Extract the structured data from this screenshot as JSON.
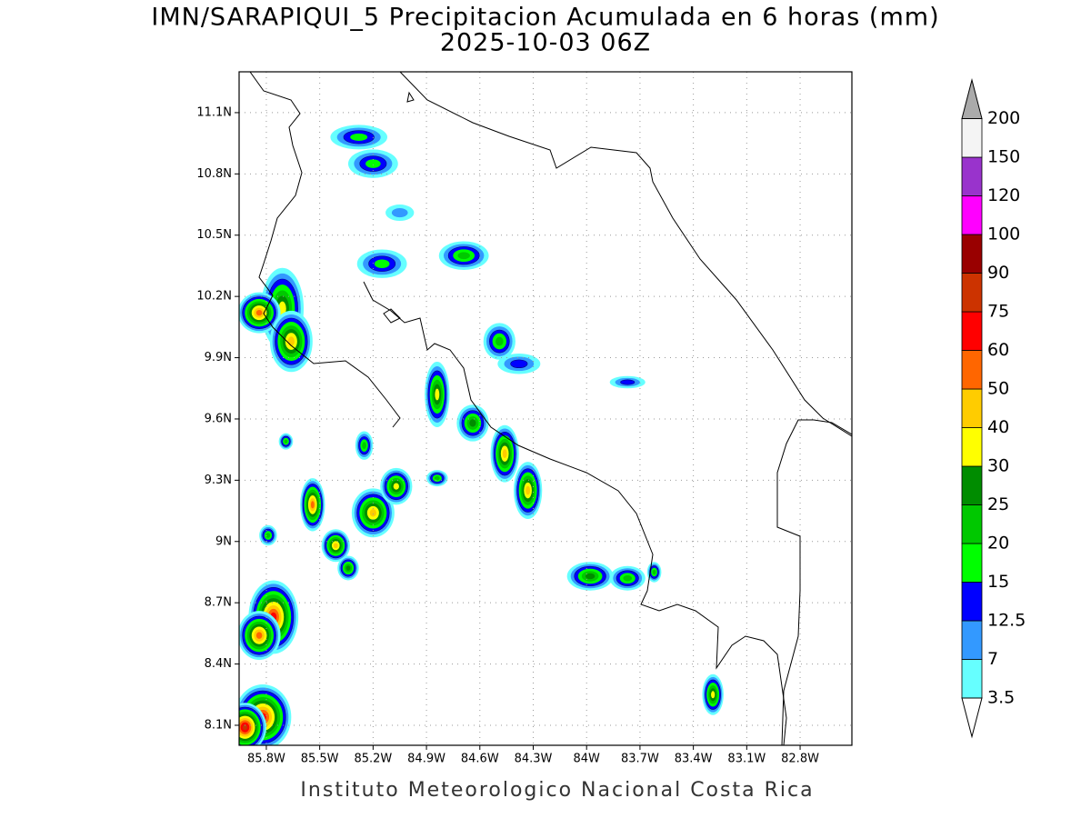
{
  "chart_data": {
    "type": "map",
    "title": "IMN/SARAPIQUI_5 Precipitacion Acumulada en 6 horas (mm)",
    "subtitle": "2025-10-03 06Z",
    "credit": "Instituto Meteorologico Nacional Costa Rica",
    "xlim": [
      -85.953,
      -82.509
    ],
    "ylim": [
      8.002,
      11.3
    ],
    "grid": true,
    "xticks": [
      {
        "value": -85.8,
        "label": "85.8W"
      },
      {
        "value": -85.5,
        "label": "85.5W"
      },
      {
        "value": -85.2,
        "label": "85.2W"
      },
      {
        "value": -84.9,
        "label": "84.9W"
      },
      {
        "value": -84.6,
        "label": "84.6W"
      },
      {
        "value": -84.3,
        "label": "84.3W"
      },
      {
        "value": -84.0,
        "label": "84W"
      },
      {
        "value": -83.7,
        "label": "83.7W"
      },
      {
        "value": -83.4,
        "label": "83.4W"
      },
      {
        "value": -83.1,
        "label": "83.1W"
      },
      {
        "value": -82.8,
        "label": "82.8W"
      }
    ],
    "yticks": [
      {
        "value": 11.1,
        "label": "11.1N"
      },
      {
        "value": 10.8,
        "label": "10.8N"
      },
      {
        "value": 10.5,
        "label": "10.5N"
      },
      {
        "value": 10.2,
        "label": "10.2N"
      },
      {
        "value": 9.9,
        "label": "9.9N"
      },
      {
        "value": 9.6,
        "label": "9.6N"
      },
      {
        "value": 9.3,
        "label": "9.3N"
      },
      {
        "value": 9.0,
        "label": "9N"
      },
      {
        "value": 8.7,
        "label": "8.7N"
      },
      {
        "value": 8.4,
        "label": "8.4N"
      },
      {
        "value": 8.1,
        "label": "8.1N"
      }
    ],
    "colorbar": {
      "levels": [
        3.5,
        7,
        12.5,
        15,
        20,
        25,
        30,
        40,
        50,
        60,
        75,
        90,
        100,
        120,
        150,
        200
      ],
      "colors": [
        "#66ffff",
        "#3399ff",
        "#0000ff",
        "#00ff00",
        "#00c800",
        "#008c00",
        "#ffff00",
        "#ffcc00",
        "#ff6600",
        "#ff0000",
        "#cc3300",
        "#990000",
        "#ff00ff",
        "#9933cc",
        "#f4f4f4"
      ],
      "over_color": "#aaaaaa",
      "under_color": "#ffffff"
    },
    "cells": [
      {
        "lon": -85.28,
        "lat": 10.98,
        "rx": 0.16,
        "ry": 0.06,
        "peak": 15
      },
      {
        "lon": -85.2,
        "lat": 10.85,
        "rx": 0.14,
        "ry": 0.07,
        "peak": 15
      },
      {
        "lon": -85.71,
        "lat": 10.14,
        "rx": 0.12,
        "ry": 0.2,
        "peak": 30
      },
      {
        "lon": -85.84,
        "lat": 10.12,
        "rx": 0.12,
        "ry": 0.1,
        "peak": 50
      },
      {
        "lon": -85.66,
        "lat": 9.98,
        "rx": 0.12,
        "ry": 0.15,
        "peak": 40
      },
      {
        "lon": -85.15,
        "lat": 10.36,
        "rx": 0.14,
        "ry": 0.07,
        "peak": 15
      },
      {
        "lon": -84.69,
        "lat": 10.4,
        "rx": 0.14,
        "ry": 0.07,
        "peak": 20
      },
      {
        "lon": -84.49,
        "lat": 9.98,
        "rx": 0.09,
        "ry": 0.09,
        "peak": 20
      },
      {
        "lon": -84.38,
        "lat": 9.87,
        "rx": 0.12,
        "ry": 0.05,
        "peak": 12.5
      },
      {
        "lon": -84.84,
        "lat": 9.72,
        "rx": 0.07,
        "ry": 0.16,
        "peak": 30
      },
      {
        "lon": -84.64,
        "lat": 9.58,
        "rx": 0.09,
        "ry": 0.09,
        "peak": 25
      },
      {
        "lon": -84.46,
        "lat": 9.43,
        "rx": 0.08,
        "ry": 0.14,
        "peak": 40
      },
      {
        "lon": -84.33,
        "lat": 9.25,
        "rx": 0.08,
        "ry": 0.14,
        "peak": 40
      },
      {
        "lon": -85.54,
        "lat": 9.18,
        "rx": 0.07,
        "ry": 0.13,
        "peak": 50
      },
      {
        "lon": -85.2,
        "lat": 9.14,
        "rx": 0.12,
        "ry": 0.12,
        "peak": 40
      },
      {
        "lon": -85.07,
        "lat": 9.27,
        "rx": 0.09,
        "ry": 0.09,
        "peak": 30
      },
      {
        "lon": -85.41,
        "lat": 8.98,
        "rx": 0.08,
        "ry": 0.08,
        "peak": 40
      },
      {
        "lon": -85.34,
        "lat": 8.87,
        "rx": 0.06,
        "ry": 0.06,
        "peak": 25
      },
      {
        "lon": -85.76,
        "lat": 8.63,
        "rx": 0.14,
        "ry": 0.18,
        "peak": 60
      },
      {
        "lon": -85.84,
        "lat": 8.54,
        "rx": 0.12,
        "ry": 0.12,
        "peak": 50
      },
      {
        "lon": -85.82,
        "lat": 8.14,
        "rx": 0.16,
        "ry": 0.16,
        "peak": 60
      },
      {
        "lon": -85.92,
        "lat": 8.09,
        "rx": 0.12,
        "ry": 0.12,
        "peak": 75
      },
      {
        "lon": -83.98,
        "lat": 8.83,
        "rx": 0.13,
        "ry": 0.07,
        "peak": 25
      },
      {
        "lon": -83.77,
        "lat": 8.82,
        "rx": 0.1,
        "ry": 0.06,
        "peak": 20
      },
      {
        "lon": -83.29,
        "lat": 8.25,
        "rx": 0.06,
        "ry": 0.1,
        "peak": 30
      },
      {
        "lon": -83.77,
        "lat": 9.78,
        "rx": 0.1,
        "ry": 0.03,
        "peak": 12.5
      },
      {
        "lon": -85.25,
        "lat": 9.47,
        "rx": 0.05,
        "ry": 0.07,
        "peak": 20
      },
      {
        "lon": -85.69,
        "lat": 9.49,
        "rx": 0.04,
        "ry": 0.04,
        "peak": 20
      },
      {
        "lon": -84.84,
        "lat": 9.31,
        "rx": 0.06,
        "ry": 0.04,
        "peak": 20
      },
      {
        "lon": -85.79,
        "lat": 9.03,
        "rx": 0.05,
        "ry": 0.05,
        "peak": 20
      },
      {
        "lon": -83.62,
        "lat": 8.85,
        "rx": 0.04,
        "ry": 0.05,
        "peak": 20
      },
      {
        "lon": -85.05,
        "lat": 10.61,
        "rx": 0.08,
        "ry": 0.04,
        "peak": 7
      }
    ]
  }
}
